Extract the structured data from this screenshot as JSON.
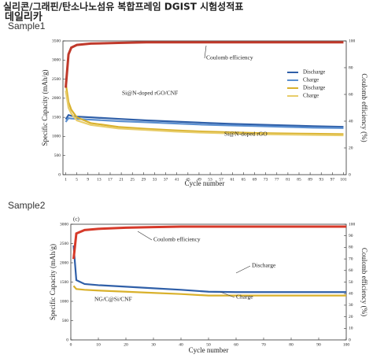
{
  "header": {
    "title": "실리콘/그래핀/탄소나노섬유 복합프레임 DGIST 시험성적표",
    "watermark": "데일리카"
  },
  "chart_data": [
    {
      "type": "line",
      "panel_label": "Sample1",
      "xlabel": "Cycle number",
      "ylabel": "Specific Capacity (mAh/g)",
      "y2label": "Coulomb efficiency (%)",
      "x": [
        1,
        2,
        3,
        5,
        10,
        20,
        30,
        40,
        50,
        60,
        70,
        80,
        90,
        101
      ],
      "xlim": [
        0,
        102
      ],
      "xticks": [
        1,
        5,
        9,
        13,
        17,
        21,
        25,
        29,
        33,
        37,
        41,
        45,
        49,
        53,
        57,
        61,
        65,
        69,
        73,
        77,
        81,
        85,
        89,
        93,
        97,
        101
      ],
      "ylim": [
        0,
        3500
      ],
      "yticks": [
        0,
        500,
        1000,
        1500,
        2000,
        2500,
        3000,
        3500
      ],
      "y2lim": [
        0,
        100
      ],
      "y2ticks": [
        0,
        20,
        40,
        60,
        80,
        100
      ],
      "legend": "upper right",
      "annotations": [
        "Coulomb efficiency",
        "Si@N-doped rGO/CNF",
        "Si@N-doped rGO"
      ],
      "series": [
        {
          "name": "Discharge",
          "color": "#2f5fa8",
          "values": [
            1450,
            1560,
            1540,
            1520,
            1500,
            1460,
            1420,
            1390,
            1360,
            1330,
            1310,
            1290,
            1270,
            1250
          ]
        },
        {
          "name": "Charge",
          "color": "#5b8fd0",
          "values": [
            1380,
            1480,
            1470,
            1460,
            1440,
            1400,
            1370,
            1340,
            1310,
            1290,
            1270,
            1250,
            1230,
            1220
          ]
        },
        {
          "name": "Discharge",
          "color": "#d9b12c",
          "values": [
            2400,
            1900,
            1700,
            1500,
            1350,
            1250,
            1200,
            1160,
            1130,
            1110,
            1090,
            1080,
            1070,
            1060
          ]
        },
        {
          "name": "Charge",
          "color": "#e8cd6a",
          "values": [
            2200,
            1750,
            1600,
            1420,
            1300,
            1210,
            1170,
            1130,
            1100,
            1080,
            1060,
            1050,
            1040,
            1030
          ]
        },
        {
          "name": "Coulomb efficiency",
          "color": "#c0392b",
          "axis": "y2",
          "values": [
            65,
            90,
            95,
            97,
            98,
            98.5,
            99,
            99,
            99,
            99,
            99,
            99,
            99,
            99
          ]
        }
      ]
    },
    {
      "type": "line",
      "panel_label": "Sample2",
      "corner_label": "(c)",
      "xlabel": "Cycle number",
      "ylabel": "Specific Capacity (mAh/g)",
      "y2label": "Coulomb efficiency (%)",
      "x": [
        1,
        2,
        5,
        10,
        20,
        30,
        40,
        50,
        60,
        70,
        80,
        90,
        100
      ],
      "xlim": [
        0,
        100
      ],
      "xticks": [
        0,
        10,
        20,
        30,
        40,
        50,
        60,
        70,
        80,
        90,
        100
      ],
      "ylim": [
        0,
        3000
      ],
      "yticks": [
        0,
        500,
        1000,
        1500,
        2000,
        2500,
        3000
      ],
      "y2lim": [
        0,
        100
      ],
      "y2ticks": [
        0,
        10,
        20,
        30,
        40,
        50,
        60,
        70,
        80,
        90,
        100
      ],
      "annotations": [
        "Coulomb efficiency",
        "Discharge",
        "Charge",
        "NG/C@Si/CNF"
      ],
      "series": [
        {
          "name": "Discharge",
          "color": "#2f5fa8",
          "values": [
            2450,
            1550,
            1450,
            1420,
            1380,
            1340,
            1300,
            1250,
            1240,
            1240,
            1240,
            1240,
            1240
          ]
        },
        {
          "name": "Charge",
          "color": "#d9b12c",
          "values": [
            1400,
            1320,
            1300,
            1280,
            1250,
            1220,
            1190,
            1150,
            1150,
            1150,
            1150,
            1150,
            1150
          ]
        },
        {
          "name": "Coulomb efficiency",
          "color": "#d63a2a",
          "axis": "y2",
          "values": [
            70,
            92,
            95,
            96,
            97,
            97.5,
            98,
            98,
            98,
            98,
            98,
            98,
            98
          ]
        }
      ]
    }
  ]
}
